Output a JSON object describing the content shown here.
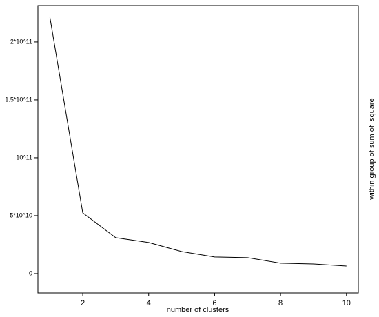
{
  "chart_data": {
    "type": "line",
    "x_label": "number of clusters",
    "y_label": "within group of sum of  square",
    "x": [
      1,
      2,
      3,
      4,
      5,
      6,
      7,
      8,
      9,
      10
    ],
    "series": [
      {
        "color": "#000000",
        "values": [
          222000000000,
          52400000000,
          31000000000,
          26800000000,
          19000000000,
          14300000000,
          13700000000,
          9000000000,
          8300000000,
          6500000000
        ]
      }
    ],
    "xlim": [
      0.64,
      10.36
    ],
    "xticks": [
      2,
      4,
      6,
      8,
      10
    ],
    "ylim": [
      -16700000000,
      231500000000
    ],
    "yticks": [
      0,
      {
        "value": 50000000000,
        "label": "5*10^10"
      },
      {
        "value": 100000000000,
        "label": "10^11"
      },
      {
        "value": 150000000000,
        "label": "1.5*10^11"
      },
      {
        "value": 200000000000,
        "label": "2*10^11"
      }
    ]
  }
}
